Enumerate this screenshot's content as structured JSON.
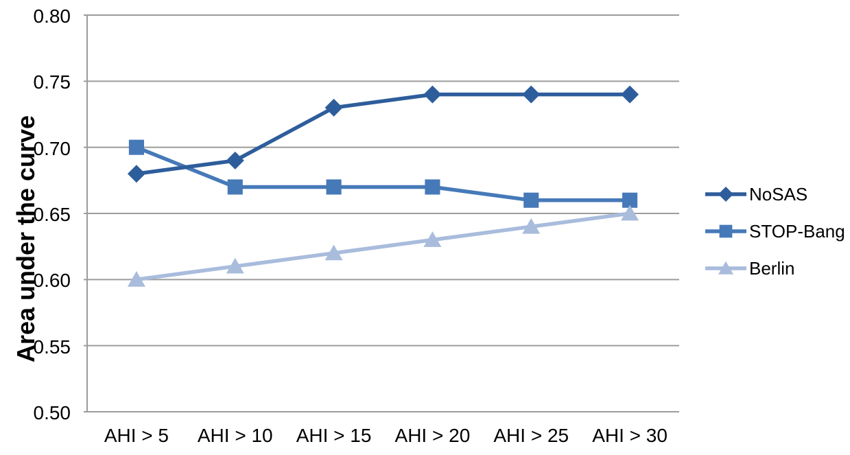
{
  "chart_data": {
    "type": "line",
    "title": "",
    "xlabel": "",
    "ylabel": "Area under the curve",
    "categories": [
      "AHI > 5",
      "AHI > 10",
      "AHI > 15",
      "AHI > 20",
      "AHI > 25",
      "AHI > 30"
    ],
    "series": [
      {
        "name": "NoSAS",
        "marker": "diamond",
        "color": "#2E5D9B",
        "values": [
          0.68,
          0.69,
          0.73,
          0.74,
          0.74,
          0.74
        ]
      },
      {
        "name": "STOP-Bang",
        "marker": "square",
        "color": "#4679B8",
        "values": [
          0.7,
          0.67,
          0.67,
          0.67,
          0.66,
          0.66
        ]
      },
      {
        "name": "Berlin",
        "marker": "triangle",
        "color": "#A9BCDC",
        "values": [
          0.6,
          0.61,
          0.62,
          0.63,
          0.64,
          0.65
        ]
      }
    ],
    "ylim": [
      0.5,
      0.8
    ],
    "ytick_labels": [
      "0.80",
      "0.75",
      "0.70",
      "0.65",
      "0.60",
      "0.55",
      "0.50"
    ],
    "grid": true,
    "legend_position": "right",
    "axis_color": "#9B9B9B",
    "text_color": "#000000",
    "background": "#FFFFFF"
  }
}
